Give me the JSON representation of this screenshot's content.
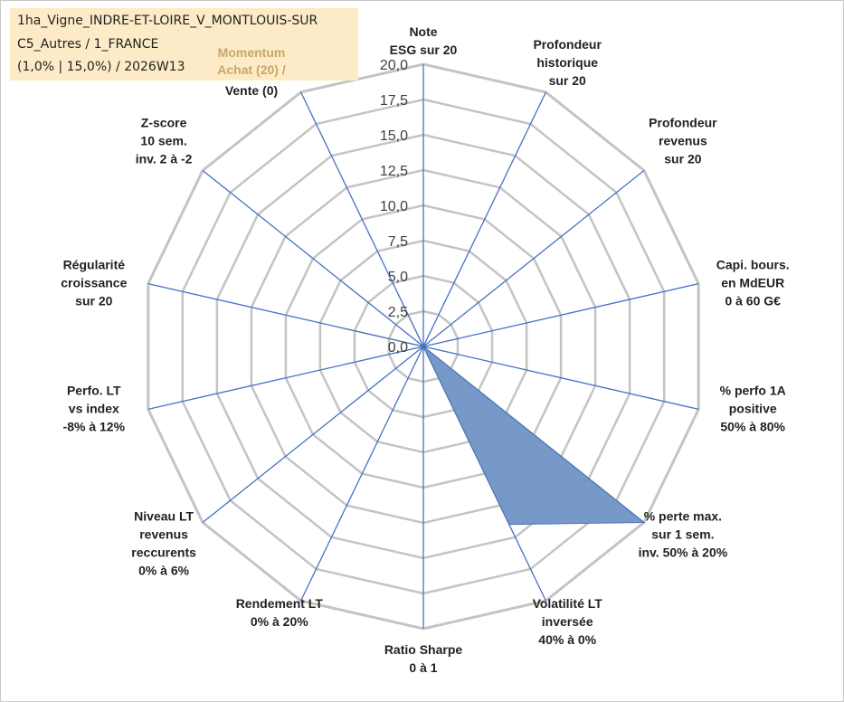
{
  "header": {
    "line1": "1ha_Vigne_INDRE-ET-LOIRE_V_MONTLOUIS-SUR",
    "line2": "C5_Autres / 1_FRANCE",
    "line3": "(1,0% | 15,0%) / 2026W13"
  },
  "momentum": {
    "line1": "Momentum",
    "line2": "Achat (20) /",
    "line3": "Vente (0)"
  },
  "chart_data": {
    "type": "radar",
    "r_range": [
      0,
      20
    ],
    "r_ticks": [
      "0,0",
      "2,5",
      "5,0",
      "7,5",
      "10,0",
      "12,5",
      "15,0",
      "17,5",
      "20,0"
    ],
    "grid": true,
    "axes": [
      [
        "Note",
        "ESG sur 20"
      ],
      [
        "Profondeur",
        "historique",
        "sur 20"
      ],
      [
        "Profondeur",
        "revenus",
        "sur 20"
      ],
      [
        "Capi. bours.",
        "en MdEUR",
        "0 à 60 G€"
      ],
      [
        "% perfo 1A",
        "positive",
        "50% à 80%"
      ],
      [
        "% perte max.",
        "sur 1 sem.",
        "inv. 50% à 20%"
      ],
      [
        "Volatilité LT",
        "inversée",
        "40% à 0%"
      ],
      [
        "Ratio Sharpe",
        "0 à 1"
      ],
      [
        "Rendement LT",
        "0% à 20%"
      ],
      [
        "Niveau LT",
        "revenus",
        "reccurents",
        "0% à 6%"
      ],
      [
        "Perfo. LT",
        "vs index",
        "-8% à 12%"
      ],
      [
        "Régularité",
        "croissance",
        "sur 20"
      ],
      [
        "Z-score",
        "10 sem.",
        "inv. 2 à -2"
      ],
      [
        "Momentum",
        "Achat (20) /",
        "Vente (0)"
      ]
    ],
    "series": [
      {
        "values": [
          0,
          0,
          0,
          0,
          0,
          20,
          14,
          0,
          0,
          0,
          0,
          6,
          0,
          4
        ],
        "fill": "#6f93c7",
        "stroke": "#4a72ad"
      }
    ],
    "colors": {
      "grid": "#c4c4c4",
      "spoke": "#4472c4"
    }
  }
}
